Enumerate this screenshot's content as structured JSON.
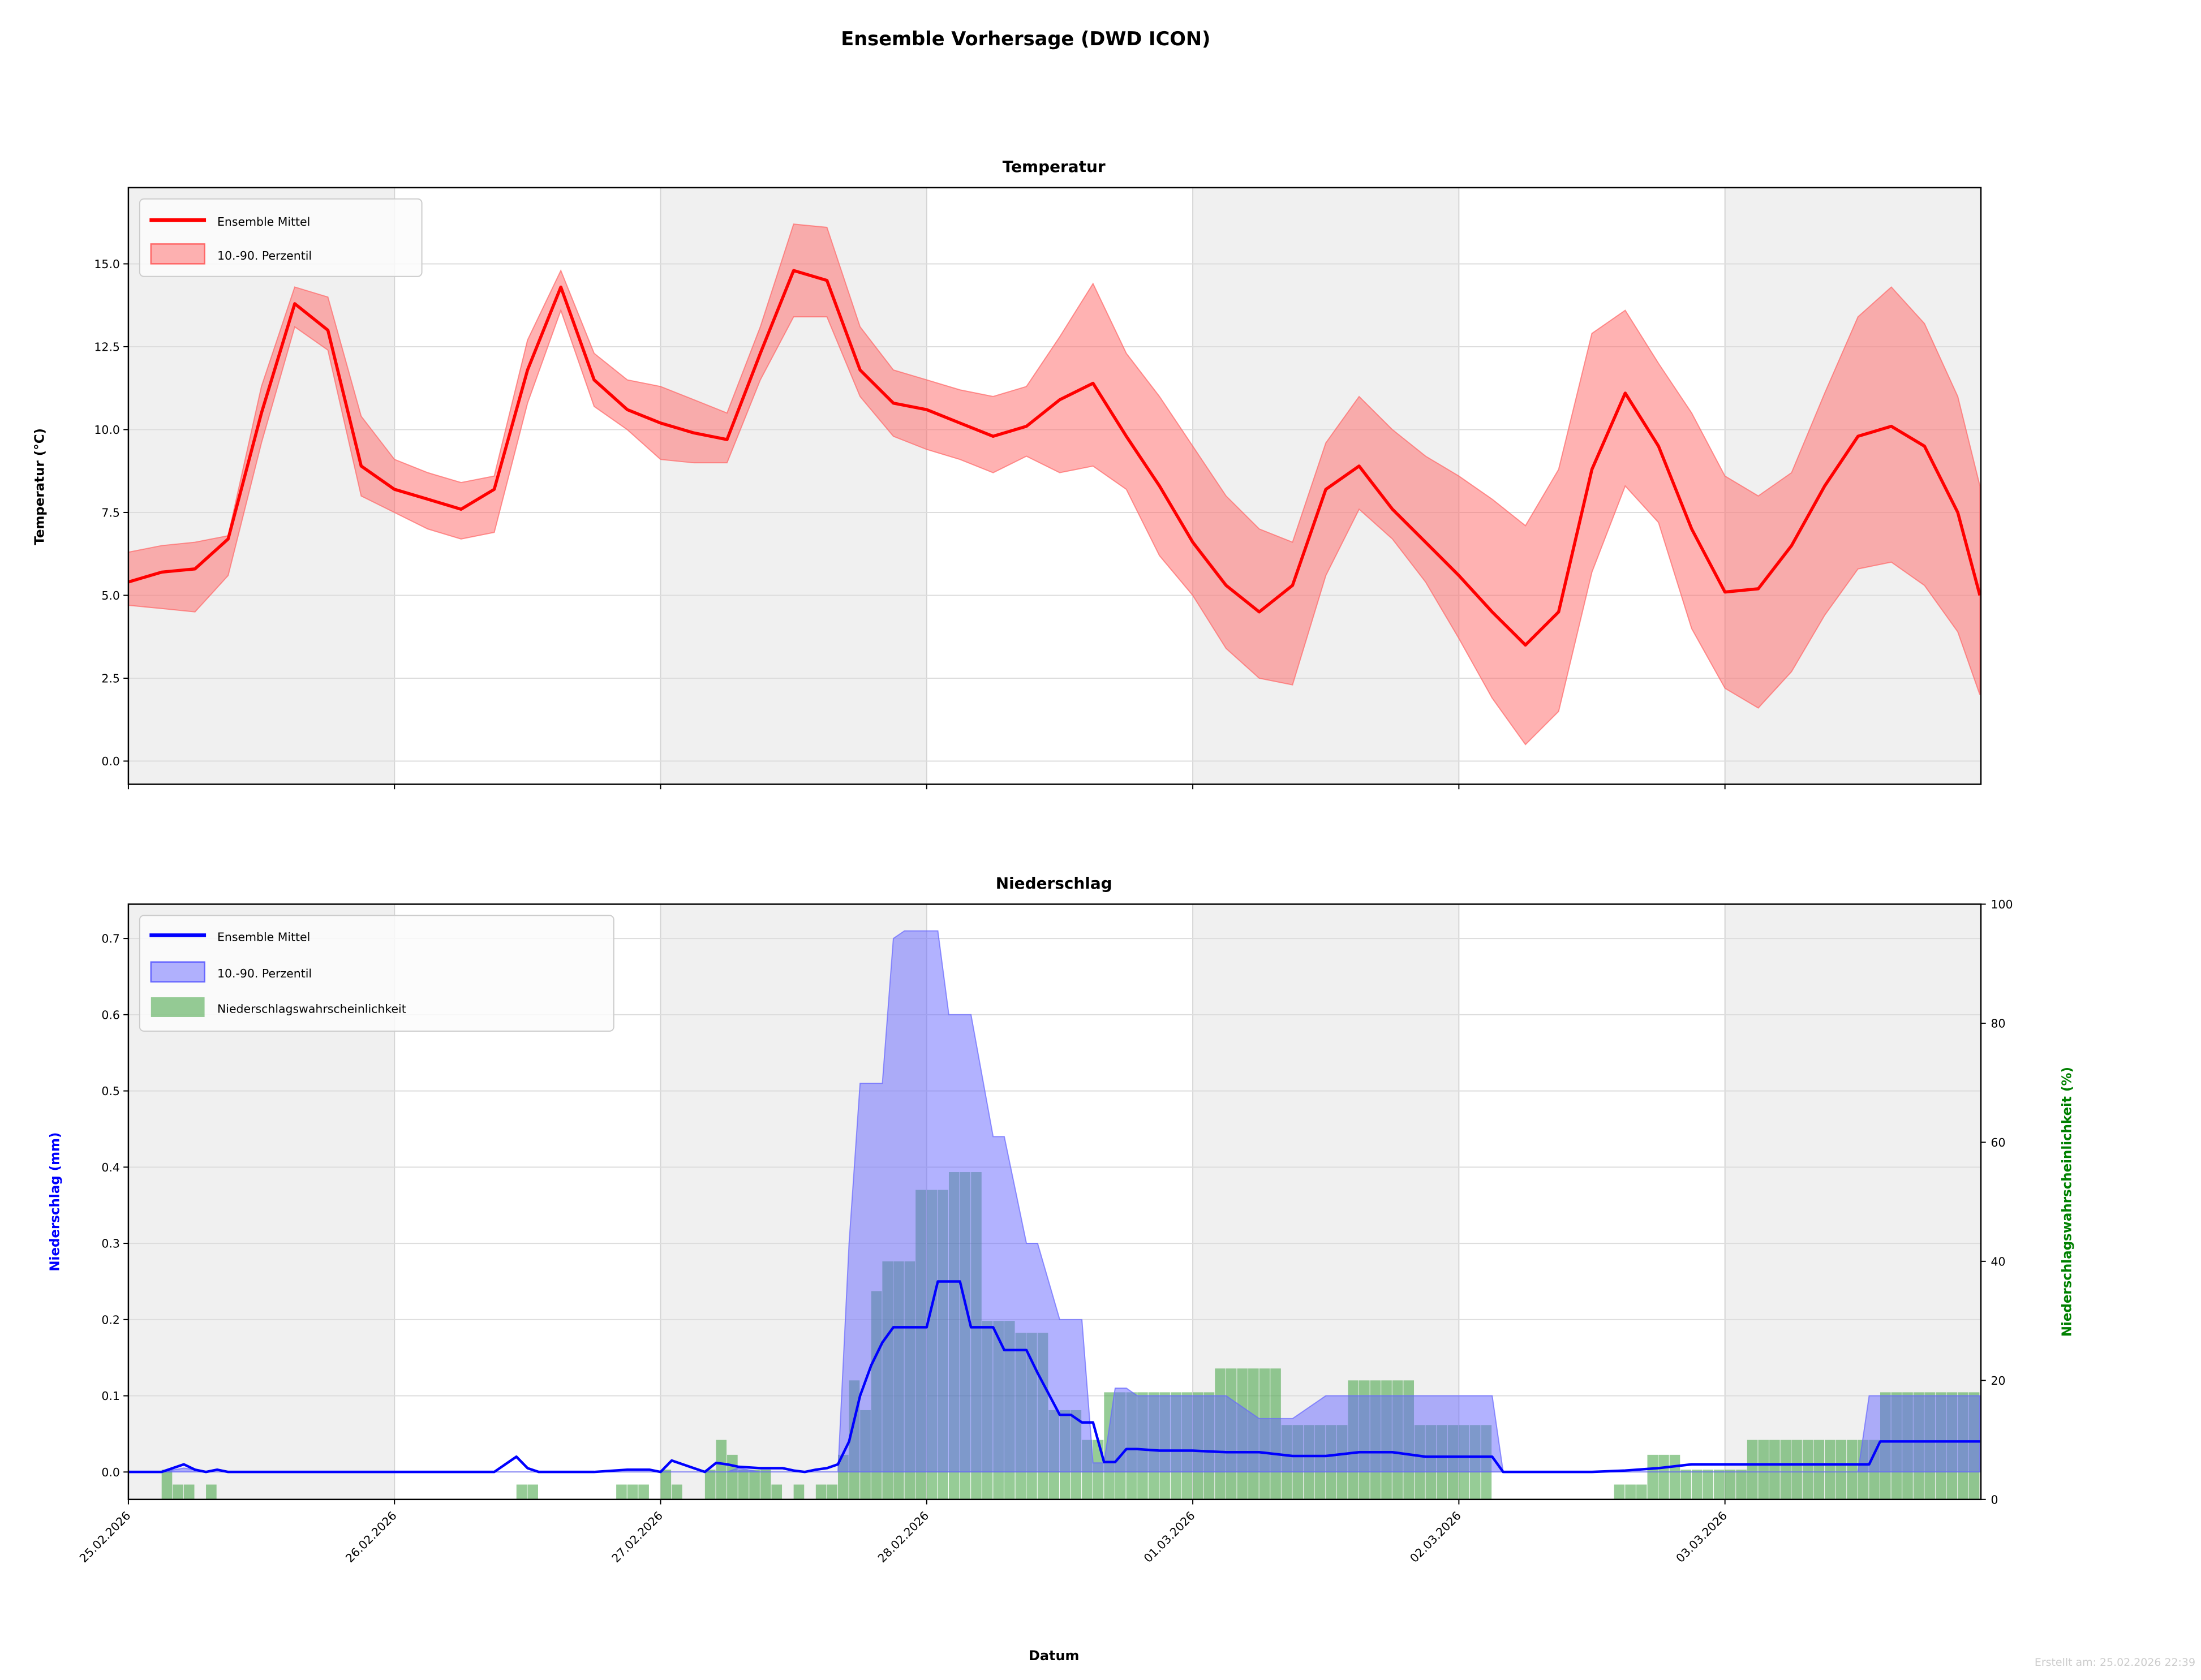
{
  "figure": {
    "title": "Ensemble Vorhersage (DWD ICON)",
    "footer": "Erstellt am: 25.02.2026 22:39",
    "xlabel": "Datum",
    "x_ticks": [
      "25.02.2026",
      "26.02.2026",
      "27.02.2026",
      "28.02.2026",
      "01.03.2026",
      "02.03.2026",
      "03.03.2026"
    ]
  },
  "colors": {
    "temp_line": "#ff0000",
    "temp_band": "#ff6666",
    "precip_line": "#0000ff",
    "precip_band": "#6666ff",
    "prob_bars": "#2e9a2e",
    "right_axis": "#008000",
    "weekend_shade": "#f0f0f0",
    "grid": "#dddddd"
  },
  "chart_data": [
    {
      "type": "line",
      "title": "Temperatur",
      "xlabel": "",
      "ylabel": "Temperatur (°C)",
      "x_unit": "hours since 25.02.2026 00:00",
      "xlim": [
        0,
        167
      ],
      "ylim": [
        -0.7,
        17.3
      ],
      "y_ticks": [
        "0.0",
        "2.5",
        "5.0",
        "7.5",
        "10.0",
        "12.5",
        "15.0"
      ],
      "y_tick_values": [
        0,
        2.5,
        5,
        7.5,
        10,
        12.5,
        15
      ],
      "grid": true,
      "legend_position": "top-left",
      "x": [
        0,
        3,
        6,
        9,
        12,
        15,
        18,
        21,
        24,
        27,
        30,
        33,
        36,
        39,
        42,
        45,
        48,
        51,
        54,
        57,
        60,
        63,
        66,
        69,
        72,
        75,
        78,
        81,
        84,
        87,
        90,
        93,
        96,
        99,
        102,
        105,
        108,
        111,
        114,
        117,
        120,
        123,
        126,
        129,
        132,
        135,
        138,
        141,
        144,
        147,
        150,
        153,
        156,
        159,
        162,
        165,
        167
      ],
      "series": [
        {
          "name": "Ensemble Mittel",
          "kind": "line",
          "values": [
            5.4,
            5.7,
            5.8,
            6.7,
            10.5,
            13.8,
            13.0,
            8.9,
            8.2,
            7.9,
            7.6,
            8.2,
            11.8,
            14.3,
            11.5,
            10.6,
            10.2,
            9.9,
            9.7,
            12.3,
            14.8,
            14.5,
            11.8,
            10.8,
            10.6,
            10.2,
            9.8,
            10.1,
            10.9,
            11.4,
            9.8,
            8.3,
            6.6,
            5.3,
            4.5,
            5.3,
            8.2,
            8.9,
            7.6,
            6.6,
            5.6,
            4.5,
            3.5,
            4.5,
            8.8,
            11.1,
            9.5,
            7.0,
            5.1,
            5.2,
            6.5,
            8.3,
            9.8,
            10.1,
            9.5,
            7.5,
            5.0
          ]
        },
        {
          "name": "10.-90. Perzentil",
          "kind": "band",
          "low": [
            4.7,
            4.6,
            4.5,
            5.6,
            9.6,
            13.1,
            12.4,
            8.0,
            7.5,
            7.0,
            6.7,
            6.9,
            10.8,
            13.6,
            10.7,
            10.0,
            9.1,
            9.0,
            9.0,
            11.5,
            13.4,
            13.4,
            11.0,
            9.8,
            9.4,
            9.1,
            8.7,
            9.2,
            8.7,
            8.9,
            8.2,
            6.2,
            5.0,
            3.4,
            2.5,
            2.3,
            5.6,
            7.6,
            6.7,
            5.4,
            3.7,
            1.9,
            0.5,
            1.5,
            5.7,
            8.3,
            7.2,
            4.0,
            2.2,
            1.6,
            2.7,
            4.4,
            5.8,
            6.0,
            5.3,
            3.9,
            2.0
          ],
          "high": [
            6.3,
            6.5,
            6.6,
            6.8,
            11.3,
            14.3,
            14.0,
            10.4,
            9.1,
            8.7,
            8.4,
            8.6,
            12.7,
            14.8,
            12.3,
            11.5,
            11.3,
            10.9,
            10.5,
            13.1,
            16.2,
            16.1,
            13.1,
            11.8,
            11.5,
            11.2,
            11.0,
            11.3,
            12.8,
            14.4,
            12.3,
            11.0,
            9.5,
            8.0,
            7.0,
            6.6,
            9.6,
            11.0,
            10.0,
            9.2,
            8.6,
            7.9,
            7.1,
            8.8,
            12.9,
            13.6,
            12.0,
            10.5,
            8.6,
            8.0,
            8.7,
            11.1,
            13.4,
            14.3,
            13.2,
            11.0,
            8.3
          ]
        }
      ]
    },
    {
      "type": "line",
      "title": "Niederschlag",
      "xlabel": "Datum",
      "ylabel": "Niederschlag (mm)",
      "y2label": "Niederschlagswahrscheinlichkeit (%)",
      "x_unit": "hours since 25.02.2026 00:00",
      "xlim": [
        0,
        167
      ],
      "ylim": [
        -0.036,
        0.745
      ],
      "y2lim": [
        0,
        100
      ],
      "y_ticks": [
        "0.0",
        "0.1",
        "0.2",
        "0.3",
        "0.4",
        "0.5",
        "0.6",
        "0.7"
      ],
      "y_tick_values": [
        0,
        0.1,
        0.2,
        0.3,
        0.4,
        0.5,
        0.6,
        0.7
      ],
      "y2_ticks": [
        "0",
        "20",
        "40",
        "60",
        "80",
        "100"
      ],
      "y2_tick_values": [
        0,
        20,
        40,
        60,
        80,
        100
      ],
      "grid": true,
      "legend_position": "top-left",
      "x": [
        0,
        3,
        5,
        6,
        7,
        8,
        9,
        12,
        33,
        35,
        36,
        37,
        39,
        42,
        45,
        46,
        47,
        48,
        49,
        51,
        52,
        53,
        54,
        55,
        57,
        58,
        59,
        60,
        61,
        62,
        63,
        64,
        65,
        66,
        67,
        68,
        69,
        70,
        72,
        73,
        74,
        75,
        76,
        78,
        79,
        81,
        82,
        84,
        85,
        86,
        87,
        88,
        89,
        90,
        91,
        93,
        96,
        99,
        102,
        105,
        108,
        111,
        114,
        117,
        120,
        123,
        124,
        132,
        135,
        138,
        141,
        144,
        147,
        156,
        157,
        158,
        167
      ],
      "series": [
        {
          "name": "Ensemble Mittel",
          "kind": "line",
          "values": [
            0,
            0,
            0.01,
            0.003,
            0,
            0.003,
            0,
            0,
            0,
            0.02,
            0.005,
            0,
            0,
            0,
            0.003,
            0.003,
            0.003,
            0,
            0.015,
            0.005,
            0,
            0.012,
            0.01,
            0.007,
            0.005,
            0.005,
            0.005,
            0.002,
            0,
            0.003,
            0.005,
            0.01,
            0.04,
            0.1,
            0.14,
            0.17,
            0.19,
            0.19,
            0.19,
            0.25,
            0.25,
            0.25,
            0.19,
            0.19,
            0.16,
            0.16,
            0.13,
            0.075,
            0.075,
            0.065,
            0.065,
            0.013,
            0.013,
            0.03,
            0.03,
            0.028,
            0.028,
            0.026,
            0.026,
            0.021,
            0.021,
            0.026,
            0.026,
            0.02,
            0.02,
            0.02,
            0,
            0,
            0.002,
            0.005,
            0.01,
            0.01,
            0.01,
            0.01,
            0.01,
            0.04,
            0.04
          ]
        },
        {
          "name": "10.-90. Perzentil",
          "kind": "band",
          "low": [
            0,
            0,
            0,
            0,
            0,
            0,
            0,
            0,
            0,
            0,
            0,
            0,
            0,
            0,
            0,
            0,
            0,
            0,
            0,
            0,
            0,
            0,
            0,
            0,
            0,
            0,
            0,
            0,
            0,
            0,
            0,
            0,
            0,
            0,
            0,
            0,
            0,
            0,
            0,
            0,
            0,
            0,
            0,
            0,
            0,
            0,
            0,
            0,
            0,
            0,
            0,
            0,
            0,
            0,
            0,
            0,
            0,
            0,
            0,
            0,
            0,
            0,
            0,
            0,
            0,
            0,
            0,
            0,
            0,
            0,
            0,
            0,
            0,
            0,
            0,
            0,
            0
          ],
          "high": [
            0,
            0,
            0.005,
            0.003,
            0,
            0,
            0,
            0,
            0,
            0,
            0,
            0,
            0,
            0,
            0,
            0,
            0,
            0,
            0,
            0,
            0,
            0,
            0,
            0.005,
            0,
            0,
            0,
            0,
            0,
            0,
            0,
            0,
            0.3,
            0.51,
            0.51,
            0.51,
            0.7,
            0.71,
            0.71,
            0.71,
            0.6,
            0.6,
            0.6,
            0.44,
            0.44,
            0.3,
            0.3,
            0.2,
            0.2,
            0.2,
            0.012,
            0.012,
            0.11,
            0.11,
            0.1,
            0.1,
            0.1,
            0.1,
            0.07,
            0.07,
            0.1,
            0.1,
            0.1,
            0.1,
            0.1,
            0.1,
            0,
            0,
            0,
            0,
            0,
            0,
            0,
            0,
            0.1,
            0.1,
            0.1
          ]
        },
        {
          "name": "Niederschlagswahrscheinlichkeit",
          "kind": "bar",
          "axis": "right",
          "bar_width_hours": 1,
          "bars": [
            [
              3,
              5
            ],
            [
              4,
              2.5
            ],
            [
              5,
              2.5
            ],
            [
              7,
              2.5
            ],
            [
              35,
              2.5
            ],
            [
              36,
              2.5
            ],
            [
              44,
              2.5
            ],
            [
              45,
              2.5
            ],
            [
              46,
              2.5
            ],
            [
              48,
              5
            ],
            [
              49,
              2.5
            ],
            [
              52,
              5
            ],
            [
              53,
              10
            ],
            [
              54,
              7.5
            ],
            [
              55,
              5
            ],
            [
              56,
              5
            ],
            [
              57,
              5
            ],
            [
              58,
              2.5
            ],
            [
              60,
              2.5
            ],
            [
              62,
              2.5
            ],
            [
              63,
              2.5
            ],
            [
              64,
              7.5
            ],
            [
              65,
              20
            ],
            [
              66,
              15
            ],
            [
              67,
              35
            ],
            [
              68,
              40
            ],
            [
              69,
              40
            ],
            [
              70,
              40
            ],
            [
              71,
              52
            ],
            [
              72,
              52
            ],
            [
              73,
              52
            ],
            [
              74,
              55
            ],
            [
              75,
              55
            ],
            [
              76,
              55
            ],
            [
              77,
              30
            ],
            [
              78,
              30
            ],
            [
              79,
              30
            ],
            [
              80,
              28
            ],
            [
              81,
              28
            ],
            [
              82,
              28
            ],
            [
              83,
              15
            ],
            [
              84,
              15
            ],
            [
              85,
              15
            ],
            [
              86,
              10
            ],
            [
              87,
              10
            ],
            [
              88,
              18
            ],
            [
              89,
              18
            ],
            [
              90,
              18
            ],
            [
              91,
              18
            ],
            [
              92,
              18
            ],
            [
              93,
              18
            ],
            [
              94,
              18
            ],
            [
              95,
              18
            ],
            [
              96,
              18
            ],
            [
              97,
              18
            ],
            [
              98,
              22
            ],
            [
              99,
              22
            ],
            [
              100,
              22
            ],
            [
              101,
              22
            ],
            [
              102,
              22
            ],
            [
              103,
              22
            ],
            [
              104,
              12.5
            ],
            [
              105,
              12.5
            ],
            [
              106,
              12.5
            ],
            [
              107,
              12.5
            ],
            [
              108,
              12.5
            ],
            [
              109,
              12.5
            ],
            [
              110,
              20
            ],
            [
              111,
              20
            ],
            [
              112,
              20
            ],
            [
              113,
              20
            ],
            [
              114,
              20
            ],
            [
              115,
              20
            ],
            [
              116,
              12.5
            ],
            [
              117,
              12.5
            ],
            [
              118,
              12.5
            ],
            [
              119,
              12.5
            ],
            [
              120,
              12.5
            ],
            [
              121,
              12.5
            ],
            [
              122,
              12.5
            ],
            [
              134,
              2.5
            ],
            [
              135,
              2.5
            ],
            [
              136,
              2.5
            ],
            [
              137,
              7.5
            ],
            [
              138,
              7.5
            ],
            [
              139,
              7.5
            ],
            [
              140,
              5
            ],
            [
              141,
              5
            ],
            [
              142,
              5
            ],
            [
              143,
              5
            ],
            [
              144,
              5
            ],
            [
              145,
              5
            ],
            [
              146,
              10
            ],
            [
              147,
              10
            ],
            [
              148,
              10
            ],
            [
              149,
              10
            ],
            [
              150,
              10
            ],
            [
              151,
              10
            ],
            [
              152,
              10
            ],
            [
              153,
              10
            ],
            [
              154,
              10
            ],
            [
              155,
              10
            ],
            [
              156,
              10
            ],
            [
              157,
              10
            ],
            [
              158,
              18
            ],
            [
              159,
              18
            ],
            [
              160,
              18
            ],
            [
              161,
              18
            ],
            [
              162,
              18
            ],
            [
              163,
              18
            ],
            [
              164,
              18
            ],
            [
              165,
              18
            ],
            [
              166,
              18
            ]
          ]
        }
      ]
    }
  ],
  "legends": {
    "temp": [
      "Ensemble Mittel",
      "10.-90. Perzentil"
    ],
    "precip": [
      "Ensemble Mittel",
      "10.-90. Perzentil",
      "Niederschlagswahrscheinlichkeit"
    ]
  }
}
